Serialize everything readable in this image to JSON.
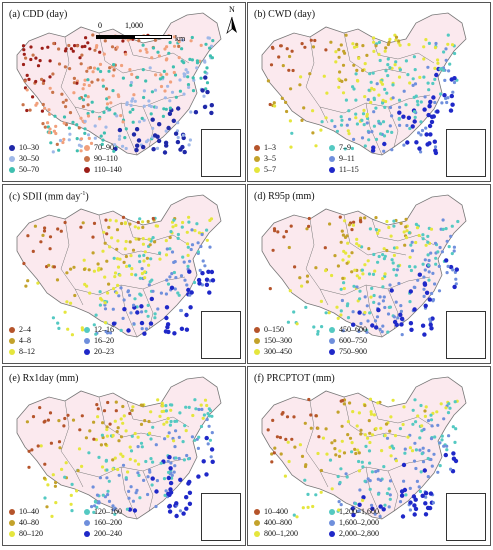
{
  "north_label": "N",
  "scale_bar": {
    "zero": "0",
    "distance": "1,000",
    "unit": "km"
  },
  "colors": {
    "province_fill": "#fbe9ee",
    "border": "#777777"
  },
  "panels": [
    {
      "title": "(a) CDD (day)",
      "legend": [
        {
          "label": "10–30",
          "color": "#1f28a8"
        },
        {
          "label": "70–90",
          "color": "#f1a07c"
        },
        {
          "label": "30–50",
          "color": "#9fb8e8"
        },
        {
          "label": "90–110",
          "color": "#c8734a"
        },
        {
          "label": "50–70",
          "color": "#3fbfb0"
        },
        {
          "label": "110–140",
          "color": "#9c1e18"
        }
      ]
    },
    {
      "title": "(b) CWD (day)",
      "legend": [
        {
          "label": "1–3",
          "color": "#b5542b"
        },
        {
          "label": "7–9",
          "color": "#54c9c2"
        },
        {
          "label": "3–5",
          "color": "#c3a22b"
        },
        {
          "label": "9–11",
          "color": "#6f8fdc"
        },
        {
          "label": "5–7",
          "color": "#e5e63d"
        },
        {
          "label": "11–15",
          "color": "#1f28c8"
        }
      ]
    },
    {
      "title": "(c) SDII (mm day",
      "title_sup": "-1",
      "title_end": ")",
      "legend": [
        {
          "label": "2–4",
          "color": "#b5542b"
        },
        {
          "label": "12–16",
          "color": "#54c9c2"
        },
        {
          "label": "4–8",
          "color": "#c3a22b"
        },
        {
          "label": "16–20",
          "color": "#6f8fdc"
        },
        {
          "label": "8–12",
          "color": "#e5e63d"
        },
        {
          "label": "20–23",
          "color": "#1f28c8"
        }
      ]
    },
    {
      "title": "(d) R95p (mm)",
      "legend": [
        {
          "label": "0–150",
          "color": "#b5542b"
        },
        {
          "label": "450–600",
          "color": "#54c9c2"
        },
        {
          "label": "150–300",
          "color": "#c3a22b"
        },
        {
          "label": "600–750",
          "color": "#6f8fdc"
        },
        {
          "label": "300–450",
          "color": "#e5e63d"
        },
        {
          "label": "750–900",
          "color": "#1f28c8"
        }
      ]
    },
    {
      "title": "(e) Rx1day (mm)",
      "legend": [
        {
          "label": "10–40",
          "color": "#b5542b"
        },
        {
          "label": "120–160",
          "color": "#54c9c2"
        },
        {
          "label": "40–80",
          "color": "#c3a22b"
        },
        {
          "label": "160–200",
          "color": "#6f8fdc"
        },
        {
          "label": "80–120",
          "color": "#e5e63d"
        },
        {
          "label": "200–240",
          "color": "#1f28c8"
        }
      ]
    },
    {
      "title": "(f) PRCPTOT (mm)",
      "legend": [
        {
          "label": "10–400",
          "color": "#b5542b"
        },
        {
          "label": "1,200–1,600",
          "color": "#54c9c2"
        },
        {
          "label": "400–800",
          "color": "#c3a22b"
        },
        {
          "label": "1,600–2,000",
          "color": "#6f8fdc"
        },
        {
          "label": "800–1,200",
          "color": "#e5e63d"
        },
        {
          "label": "2,000–2,800",
          "color": "#1f28c8"
        }
      ]
    }
  ]
}
